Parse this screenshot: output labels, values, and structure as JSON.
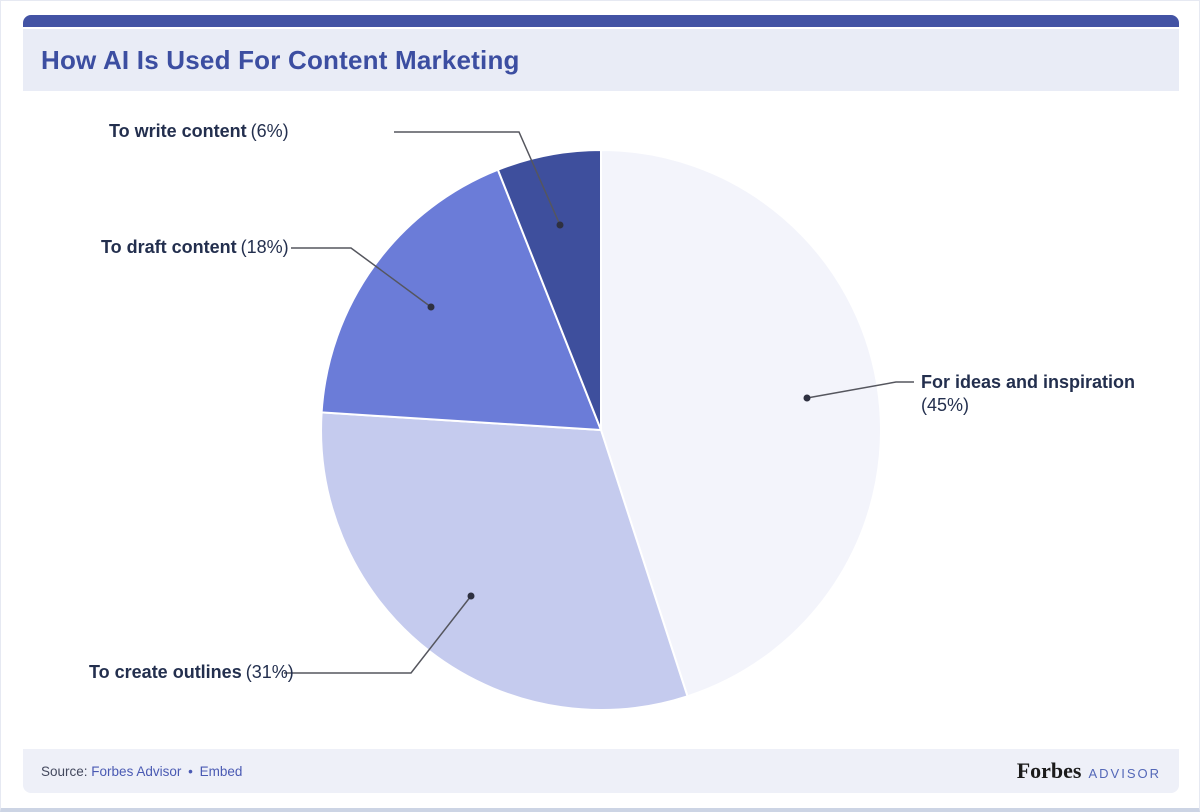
{
  "header": {
    "title": "How AI Is Used For Content Marketing"
  },
  "chart_data": {
    "type": "pie",
    "title": "How AI Is Used For Content Marketing",
    "start_angle_deg": 0,
    "direction": "clockwise",
    "legend_position": "leader-line-labels",
    "slices": [
      {
        "label": "For ideas and inspiration",
        "value": 45,
        "pct_text": "(45%)",
        "color": "#f3f4fb"
      },
      {
        "label": "To create outlines",
        "value": 31,
        "pct_text": "(31%)",
        "color": "#c5cbee"
      },
      {
        "label": "To draft content",
        "value": 18,
        "pct_text": "(18%)",
        "color": "#6b7cd8"
      },
      {
        "label": "To write content",
        "value": 6,
        "pct_text": "(6%)",
        "color": "#3e4f9d"
      }
    ],
    "leader_line_color": "#55565e",
    "leader_dot_color": "#2e3040"
  },
  "footer": {
    "source_prefix": "Source:",
    "source_link": "Forbes Advisor",
    "separator": "•",
    "embed_link": "Embed",
    "brand": {
      "forbes": "Forbes",
      "advisor": "ADVISOR"
    }
  }
}
